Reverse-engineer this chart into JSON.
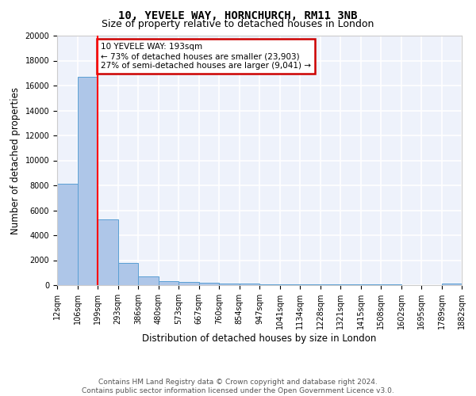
{
  "title1": "10, YEVELE WAY, HORNCHURCH, RM11 3NB",
  "title2": "Size of property relative to detached houses in London",
  "xlabel": "Distribution of detached houses by size in London",
  "ylabel": "Number of detached properties",
  "bar_color": "#aec6e8",
  "bar_edge_color": "#5a9fd4",
  "background_color": "#eef2fb",
  "grid_color": "#ffffff",
  "bin_edges": [
    12,
    106,
    199,
    293,
    386,
    480,
    573,
    667,
    760,
    854,
    947,
    1041,
    1134,
    1228,
    1321,
    1415,
    1508,
    1602,
    1695,
    1789,
    1882
  ],
  "bar_heights": [
    8100,
    16700,
    5300,
    1800,
    700,
    300,
    250,
    200,
    150,
    100,
    80,
    80,
    70,
    60,
    50,
    45,
    40,
    30,
    20,
    150
  ],
  "red_line_x": 199,
  "ylim": [
    0,
    20000
  ],
  "yticks": [
    0,
    2000,
    4000,
    6000,
    8000,
    10000,
    12000,
    14000,
    16000,
    18000,
    20000
  ],
  "xtick_labels": [
    "12sqm",
    "106sqm",
    "199sqm",
    "293sqm",
    "386sqm",
    "480sqm",
    "573sqm",
    "667sqm",
    "760sqm",
    "854sqm",
    "947sqm",
    "1041sqm",
    "1134sqm",
    "1228sqm",
    "1321sqm",
    "1415sqm",
    "1508sqm",
    "1602sqm",
    "1695sqm",
    "1789sqm",
    "1882sqm"
  ],
  "annotation_text": "10 YEVELE WAY: 193sqm\n← 73% of detached houses are smaller (23,903)\n27% of semi-detached houses are larger (9,041) →",
  "annotation_box_color": "#ffffff",
  "annotation_box_edge_color": "#cc0000",
  "footer_text": "Contains HM Land Registry data © Crown copyright and database right 2024.\nContains public sector information licensed under the Open Government Licence v3.0.",
  "title1_fontsize": 10,
  "title2_fontsize": 9,
  "xlabel_fontsize": 8.5,
  "ylabel_fontsize": 8.5,
  "tick_fontsize": 7,
  "annotation_fontsize": 7.5,
  "footer_fontsize": 6.5
}
